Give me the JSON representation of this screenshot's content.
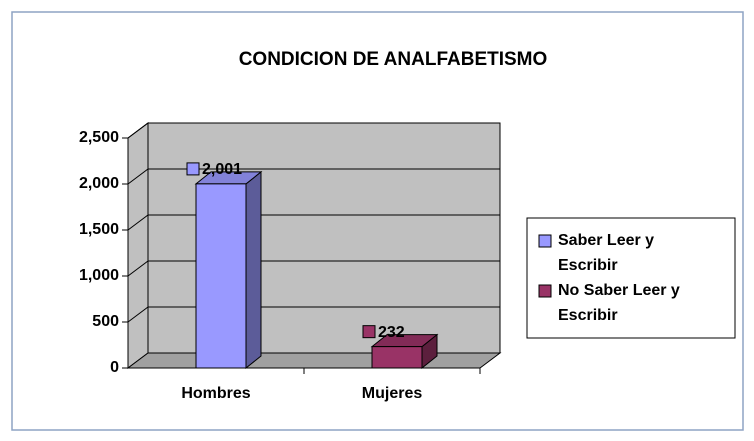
{
  "chart_data": {
    "type": "bar3d",
    "title": "CONDICION DE ANALFABETISMO",
    "categories": [
      "Hombres",
      "Mujeres"
    ],
    "series": [
      {
        "name": "Saber Leer y Escribir",
        "color": "#9999ff",
        "values": [
          2001,
          null
        ],
        "value_labels": [
          "2,001",
          null
        ]
      },
      {
        "name": "No Saber Leer y Escribir",
        "color": "#993366",
        "values": [
          null,
          232
        ],
        "value_labels": [
          null,
          "232"
        ]
      }
    ],
    "ylim": [
      0,
      2500
    ],
    "yticks": [
      0,
      {
        "value": 500,
        "label": "500"
      },
      {
        "value": 1000,
        "label": "1,000"
      },
      {
        "value": 1500,
        "label": "1,500"
      },
      {
        "value": 2000,
        "label": "2,000"
      },
      {
        "value": 2500,
        "label": "2,500"
      }
    ],
    "grid": true,
    "legend": "right"
  }
}
